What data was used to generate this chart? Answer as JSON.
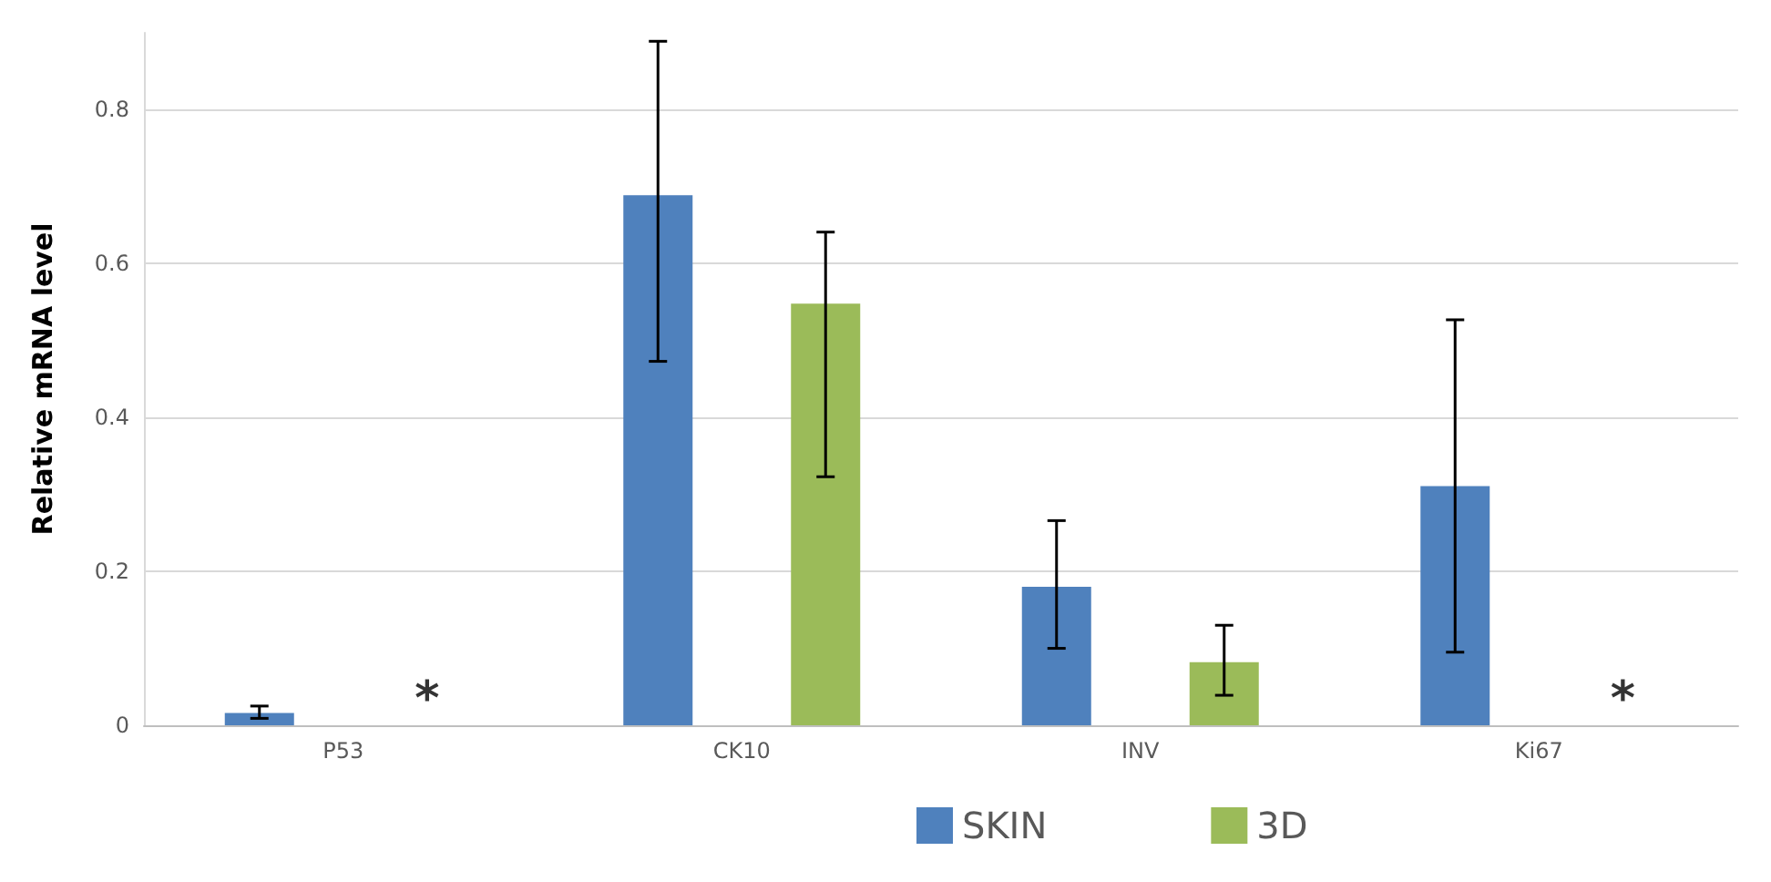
{
  "chart_data": {
    "type": "bar",
    "ylabel": "Relative mRNA level",
    "categories": [
      "P53",
      "CK10",
      "INV",
      "Ki67"
    ],
    "series": [
      {
        "name": "SKIN",
        "color": "#4f81bd",
        "values": [
          0.016,
          0.689,
          0.18,
          0.311
        ],
        "errors": [
          [
            0.009,
            0.025
          ],
          [
            0.473,
            0.889
          ],
          [
            0.1,
            0.266
          ],
          [
            0.095,
            0.527
          ]
        ]
      },
      {
        "name": "3D",
        "color": "#9bbb59",
        "values": [
          0,
          0.548,
          0.082,
          0
        ],
        "errors": [
          null,
          [
            0.323,
            0.641
          ],
          [
            0.039,
            0.13
          ],
          null
        ]
      }
    ],
    "annotations": [
      {
        "text": "*",
        "x": "P53",
        "y": 0
      },
      {
        "text": "*",
        "x": "Ki67",
        "y": 0
      }
    ],
    "ylim": [
      0,
      0.9
    ],
    "yticks": [
      0,
      0.2,
      0.4,
      0.6,
      0.8
    ],
    "grid": "y",
    "legend": "bottom"
  }
}
